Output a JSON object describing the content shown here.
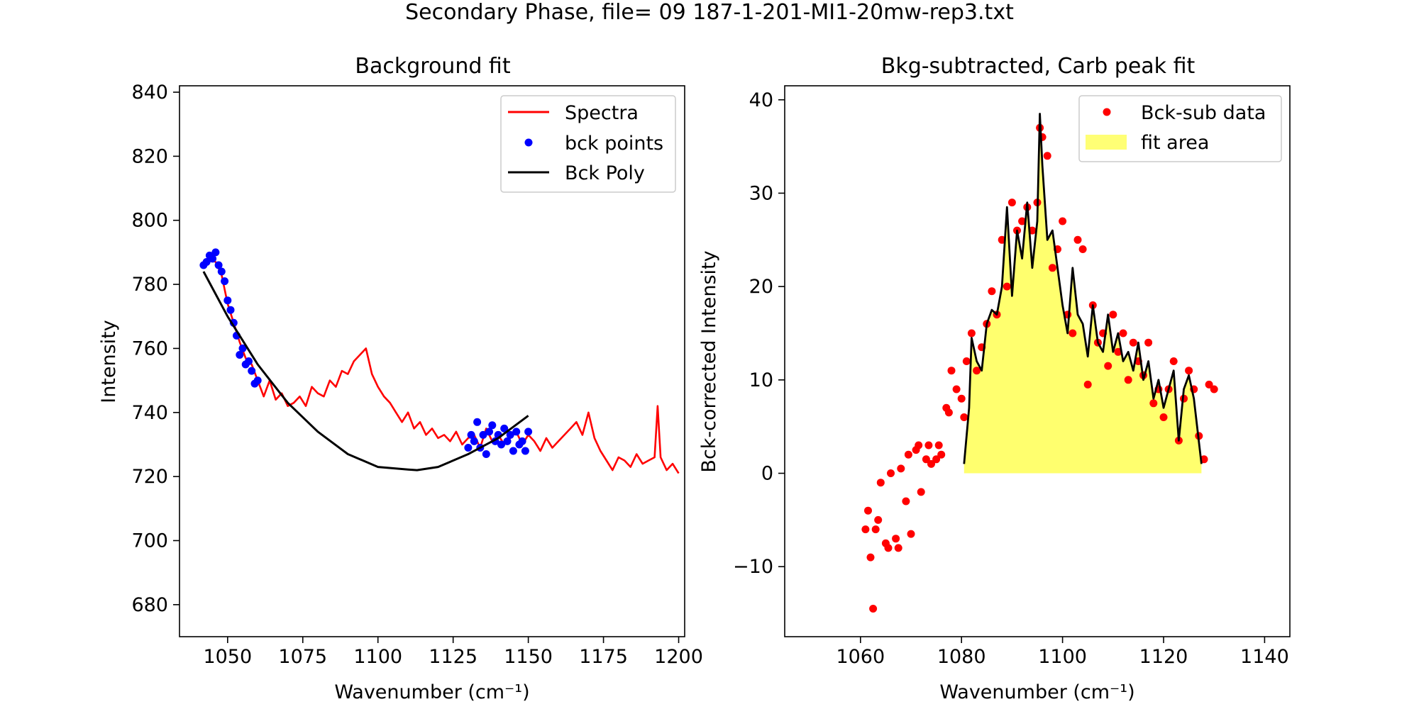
{
  "figure_title": "Secondary Phase, file= 09 187-1-201-MI1-20mw-rep3.txt",
  "colors": {
    "spectra": "#ff0000",
    "bck_points": "#0000ff",
    "poly": "#000000",
    "fit_area": "#ffff66",
    "frame": "#000000"
  },
  "chart_data": [
    {
      "type": "line",
      "title": "Background fit",
      "xlabel": "Wavenumber (cm⁻¹)",
      "ylabel": "Intensity",
      "xlim": [
        1034,
        1202
      ],
      "ylim": [
        670,
        842
      ],
      "xticks": [
        1050,
        1075,
        1100,
        1125,
        1150,
        1175,
        1200
      ],
      "yticks": [
        680,
        700,
        720,
        740,
        760,
        780,
        800,
        820,
        840
      ],
      "grid": false,
      "legend_position": "top-right",
      "legend": [
        "Spectra",
        "bck points",
        "Bck Poly"
      ],
      "series": [
        {
          "name": "Spectra",
          "style": "line",
          "x": [
            1042,
            1044,
            1046,
            1048,
            1050,
            1052,
            1054,
            1056,
            1058,
            1060,
            1062,
            1064,
            1066,
            1068,
            1070,
            1072,
            1074,
            1076,
            1078,
            1080,
            1082,
            1084,
            1086,
            1088,
            1090,
            1092,
            1094,
            1096,
            1098,
            1100,
            1102,
            1104,
            1106,
            1108,
            1110,
            1112,
            1114,
            1116,
            1118,
            1120,
            1122,
            1124,
            1126,
            1128,
            1130,
            1132,
            1134,
            1136,
            1138,
            1140,
            1142,
            1144,
            1146,
            1148,
            1150,
            1152,
            1154,
            1156,
            1158,
            1160,
            1162,
            1164,
            1166,
            1168,
            1170,
            1172,
            1174,
            1176,
            1178,
            1180,
            1182,
            1184,
            1186,
            1188,
            1190,
            1192,
            1193,
            1194,
            1196,
            1198,
            1200
          ],
          "y": [
            786,
            788,
            787,
            783,
            774,
            768,
            762,
            757,
            755,
            750,
            745,
            750,
            744,
            746,
            742,
            743,
            745,
            742,
            748,
            746,
            745,
            750,
            748,
            753,
            752,
            756,
            758,
            760,
            752,
            748,
            745,
            743,
            740,
            737,
            740,
            735,
            737,
            733,
            735,
            732,
            733,
            731,
            734,
            730,
            732,
            733,
            729,
            735,
            731,
            733,
            730,
            732,
            734,
            730,
            733,
            731,
            728,
            732,
            729,
            731,
            733,
            735,
            737,
            733,
            740,
            732,
            728,
            725,
            722,
            726,
            725,
            723,
            727,
            724,
            725,
            726,
            742,
            726,
            722,
            724,
            721
          ]
        },
        {
          "name": "bck points",
          "style": "points",
          "x": [
            1042,
            1043,
            1044,
            1045,
            1046,
            1047,
            1048,
            1049,
            1050,
            1051,
            1052,
            1053,
            1054,
            1055,
            1056,
            1057,
            1058,
            1059,
            1060,
            1130,
            1131,
            1132,
            1133,
            1134,
            1135,
            1136,
            1137,
            1138,
            1139,
            1140,
            1141,
            1142,
            1143,
            1144,
            1145,
            1146,
            1147,
            1148,
            1149,
            1150
          ],
          "y": [
            786,
            787,
            789,
            788,
            790,
            786,
            784,
            781,
            775,
            772,
            768,
            764,
            758,
            760,
            755,
            756,
            753,
            749,
            750,
            729,
            733,
            731,
            737,
            729,
            733,
            727,
            734,
            736,
            731,
            733,
            730,
            735,
            731,
            733,
            728,
            734,
            730,
            731,
            728,
            734
          ]
        },
        {
          "name": "Bck Poly",
          "style": "line",
          "x": [
            1042,
            1050,
            1060,
            1070,
            1080,
            1090,
            1100,
            1110,
            1113,
            1120,
            1130,
            1140,
            1150
          ],
          "y": [
            784,
            770,
            755,
            743,
            734,
            727,
            723,
            722.2,
            722,
            723,
            727,
            732,
            739
          ]
        }
      ]
    },
    {
      "type": "scatter",
      "title": "Bkg-subtracted, Carb peak fit",
      "xlabel": "Wavenumber (cm⁻¹)",
      "ylabel": "Bck-corrected Intensity",
      "xlim": [
        1045,
        1145
      ],
      "ylim": [
        -17.5,
        41.5
      ],
      "xticks": [
        1060,
        1080,
        1100,
        1120,
        1140
      ],
      "yticks": [
        -10,
        0,
        10,
        20,
        30,
        40
      ],
      "ytick_labels": [
        "−10",
        "0",
        "10",
        "20",
        "30",
        "40"
      ],
      "grid": false,
      "legend_position": "top-right",
      "legend": [
        "Bck-sub data",
        "fit area"
      ],
      "series": [
        {
          "name": "Bck-sub data",
          "style": "points",
          "x": [
            1061,
            1061.5,
            1062,
            1062.5,
            1063,
            1063.5,
            1064,
            1065,
            1065.5,
            1066,
            1067,
            1067.5,
            1068,
            1069,
            1069.5,
            1070,
            1071,
            1071.5,
            1072,
            1073,
            1073.5,
            1074,
            1075,
            1075.5,
            1076,
            1077,
            1077.5,
            1078,
            1079,
            1080,
            1080.5,
            1081,
            1082,
            1083,
            1084,
            1085,
            1086,
            1087,
            1088,
            1089,
            1090,
            1091,
            1092,
            1093,
            1094,
            1095,
            1095.5,
            1096,
            1097,
            1098,
            1099,
            1100,
            1101,
            1102,
            1103,
            1104,
            1105,
            1106,
            1107,
            1108,
            1109,
            1110,
            1111,
            1112,
            1113,
            1114,
            1115,
            1116,
            1117,
            1118,
            1119,
            1120,
            1121,
            1122,
            1123,
            1124,
            1125,
            1126,
            1127,
            1128,
            1129,
            1130
          ],
          "y": [
            -6,
            -4,
            -9,
            -14.5,
            -6,
            -5,
            -1,
            -7.5,
            -8,
            0,
            -7,
            -8,
            0.5,
            -3,
            2,
            -6.5,
            2.5,
            3,
            -2,
            1.5,
            3,
            1,
            1.5,
            3,
            2,
            7,
            6.5,
            11,
            9,
            8,
            6,
            12,
            15,
            11,
            13.5,
            16,
            19.5,
            17,
            25,
            20,
            29,
            26,
            27,
            28.5,
            26,
            29,
            37,
            36,
            34,
            22,
            24,
            27,
            17,
            15,
            25,
            24,
            9.5,
            18,
            14,
            15,
            11.5,
            17,
            13,
            15,
            10,
            14,
            12,
            10.5,
            14,
            7.5,
            9,
            6,
            9,
            12,
            3.5,
            8,
            11,
            9,
            4,
            1.5,
            9.5,
            9
          ]
        },
        {
          "name": "fit",
          "style": "line",
          "x": [
            1080.5,
            1081.5,
            1082,
            1083,
            1084,
            1085,
            1086,
            1087,
            1088,
            1089,
            1090,
            1091,
            1092,
            1093,
            1094,
            1095,
            1095.5,
            1096,
            1097,
            1098,
            1099,
            1100,
            1101,
            1102,
            1103,
            1104,
            1105,
            1106,
            1107,
            1108,
            1109,
            1110,
            1111,
            1112,
            1113,
            1114,
            1115,
            1116,
            1117,
            1118,
            1119,
            1120,
            1121,
            1122,
            1123,
            1124,
            1125,
            1126,
            1127.5
          ],
          "y": [
            1,
            7,
            14.5,
            12,
            11,
            16,
            17.5,
            17,
            20,
            28.5,
            19,
            26,
            23,
            29,
            22,
            27,
            38.5,
            33,
            25,
            26,
            22,
            18,
            15,
            22,
            17,
            16,
            12.5,
            18,
            14,
            13,
            17,
            13,
            15,
            12,
            13,
            11,
            14,
            10,
            12,
            8,
            10,
            7,
            9,
            11,
            3.5,
            9,
            10.5,
            8,
            1
          ]
        }
      ],
      "fit_area": {
        "x_start": 1080.5,
        "x_end": 1127.5,
        "baseline": 0
      }
    }
  ]
}
